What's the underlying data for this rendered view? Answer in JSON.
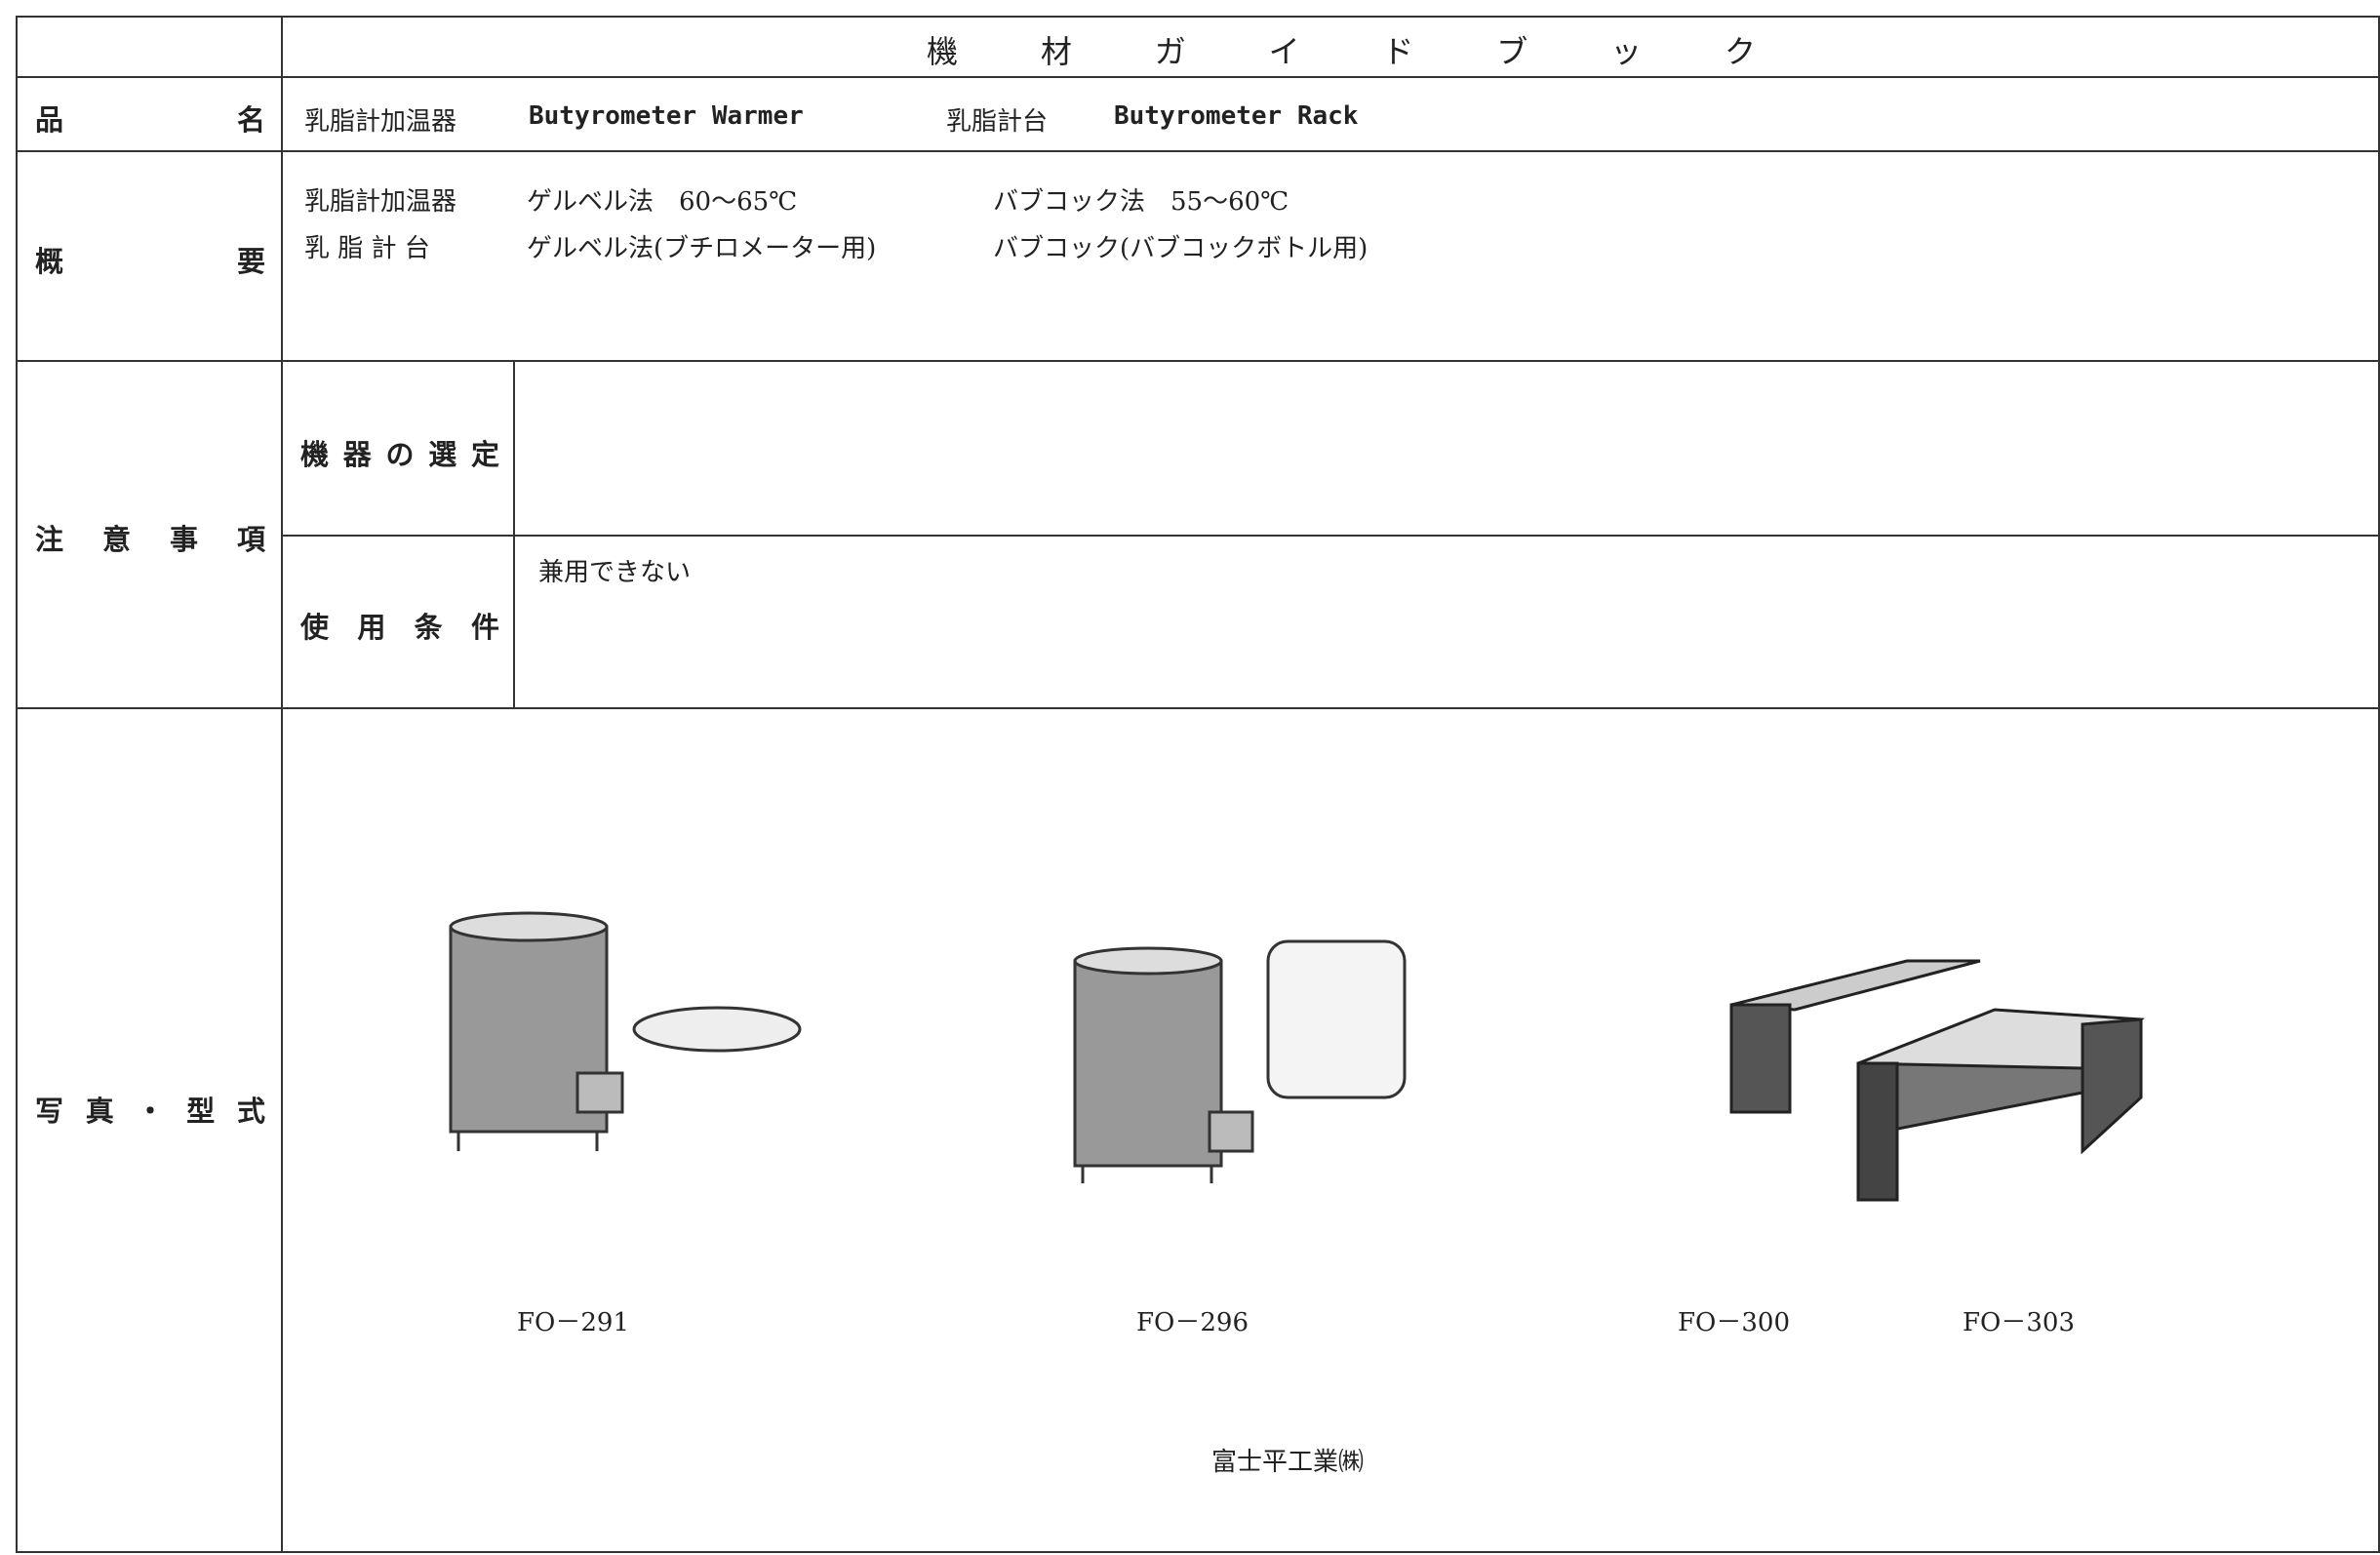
{
  "header": {
    "title": "機材ガイドブック"
  },
  "rows": {
    "name": {
      "label": "品名",
      "items": [
        "乳脂計加温器",
        "Butyrometer Warmer",
        "乳脂計台",
        "Butyrometer Rack"
      ]
    },
    "overview": {
      "label": "概要",
      "lines": [
        [
          "乳脂計加温器",
          "ゲルベル法　60～65℃",
          "バブコック法　55～60℃"
        ],
        [
          "乳 脂 計 台",
          "ゲルベル法(ブチロメーター用)",
          "バブコック(バブコックボトル用)"
        ]
      ]
    },
    "notes": {
      "label": "注意事項",
      "selection": {
        "label": "機器の選定"
      },
      "conditions": {
        "label": "使用条件",
        "text": "兼用できない"
      }
    },
    "photos": {
      "label": "写真・型式",
      "models": [
        "FO－291",
        "FO－296",
        "FO－300",
        "FO－303"
      ],
      "maker": "富士平工業㈱"
    }
  }
}
